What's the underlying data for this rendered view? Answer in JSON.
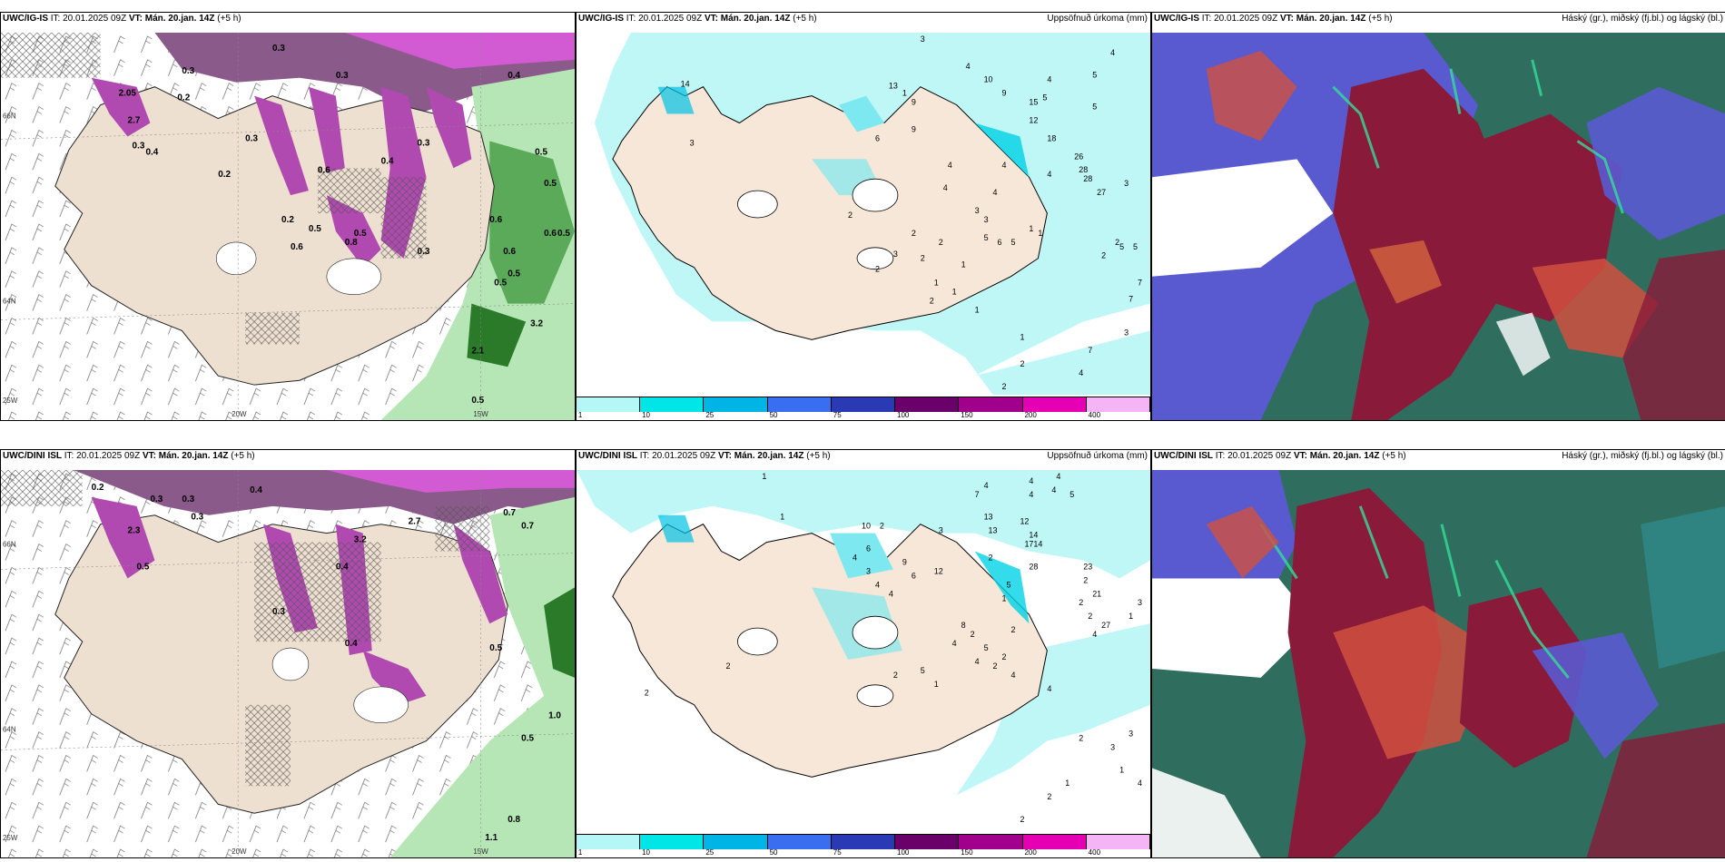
{
  "panels": [
    {
      "model": "UWC/IG-IS",
      "it_label": "IT:",
      "it": "20.01.2025 09Z",
      "vt_label": "VT:",
      "vt": "Mán. 20.jan. 14Z",
      "lead": "(+5 h)",
      "right": ""
    },
    {
      "model": "UWC/IG-IS",
      "it_label": "IT:",
      "it": "20.01.2025 09Z",
      "vt_label": "VT:",
      "vt": "Mán. 20.jan. 14Z",
      "lead": "(+5 h)",
      "right": "Uppsöfnuð úrkoma (mm)"
    },
    {
      "model": "UWC/IG-IS",
      "it_label": "IT:",
      "it": "20.01.2025 09Z",
      "vt_label": "VT:",
      "vt": "Mán. 20.jan. 14Z",
      "lead": "(+5 h)",
      "right": "Háský (gr.), miðský (fj.bl.) og lágský (bl.)"
    },
    {
      "model": "UWC/DINI ISL",
      "it_label": "IT:",
      "it": "20.01.2025 09Z",
      "vt_label": "VT:",
      "vt": "Mán. 20.jan. 14Z",
      "lead": "(+5 h)",
      "right": ""
    },
    {
      "model": "UWC/DINI ISL",
      "it_label": "IT:",
      "it": "20.01.2025 09Z",
      "vt_label": "VT:",
      "vt": "Mán. 20.jan. 14Z",
      "lead": "(+5 h)",
      "right": "Uppsöfnuð úrkoma (mm)"
    },
    {
      "model": "UWC/DINI ISL",
      "it_label": "IT:",
      "it": "20.01.2025 09Z",
      "vt_label": "VT:",
      "vt": "Mán. 20.jan. 14Z",
      "lead": "(+5 h)",
      "right": "Háský (gr.), miðský (fj.bl.) og lágský (bl.)"
    }
  ],
  "axis_labels": {
    "lon_20w": "20W",
    "lon_15w": "15W",
    "lon_25w": "25W",
    "lat_66n": "66N",
    "lat_64n": "64N"
  },
  "colorbar": {
    "labels": [
      "1",
      "10",
      "25",
      "50",
      "75",
      "100",
      "150",
      "200",
      "400"
    ],
    "colors": [
      "#b5f7f7",
      "#00e6e6",
      "#00b4e6",
      "#3a6ef0",
      "#2a3ab4",
      "#6a006a",
      "#a0008c",
      "#e600b4",
      "#f5b4f5"
    ]
  },
  "precip_labels_top": [
    "3",
    "4",
    "4",
    "10",
    "9",
    "5",
    "5",
    "4",
    "15",
    "1",
    "13",
    "9",
    "12",
    "14",
    "3",
    "6",
    "9",
    "18",
    "26",
    "28",
    "3",
    "4",
    "5",
    "5",
    "4",
    "4",
    "28",
    "27",
    "3",
    "4",
    "4",
    "3",
    "2",
    "1",
    "2",
    "2",
    "5",
    "6",
    "5",
    "1",
    "1",
    "2",
    "2",
    "5",
    "7",
    "7",
    "3",
    "1",
    "7",
    "1",
    "2",
    "4",
    "2",
    "2",
    "3",
    "1",
    "2",
    "1",
    "2"
  ],
  "precip_labels_bottom": [
    "1",
    "4",
    "4",
    "4",
    "7",
    "4",
    "4",
    "5",
    "1",
    "10",
    "2",
    "13",
    "12",
    "3",
    "13",
    "14",
    "17",
    "14",
    "4",
    "3",
    "4",
    "2",
    "5",
    "1",
    "6",
    "9",
    "12",
    "2",
    "28",
    "6",
    "4",
    "23",
    "2",
    "21",
    "2",
    "3",
    "1",
    "2",
    "8",
    "2",
    "27",
    "4",
    "4",
    "5",
    "2",
    "4",
    "2",
    "4",
    "4",
    "5",
    "1",
    "2",
    "2",
    "2",
    "3",
    "3",
    "2",
    "1",
    "4",
    "1",
    "2",
    "2"
  ],
  "snow_labels_top": [
    "0.3",
    "0.3",
    "0.2",
    "0.3",
    "2.05",
    "2.7",
    "0.4",
    "0.3",
    "0.6",
    "0.5",
    "0.6",
    "0.4",
    "0.3",
    "0.4",
    "0.5",
    "0.5",
    "0.6",
    "0.5",
    "0.6",
    "0.5",
    "0.3",
    "0.2",
    "0.2",
    "0.5",
    "0.8",
    "0.6",
    "0.3",
    "3.2",
    "2.1",
    "0.5",
    "0.5"
  ],
  "snow_labels_bottom": [
    "0.2",
    "0.3",
    "0.3",
    "0.4",
    "0.3",
    "2.7",
    "3.2",
    "2.3",
    "0.7",
    "0.7",
    "0.5",
    "0.4",
    "0.3",
    "0.5",
    "0.4",
    "1.0",
    "0.5",
    "0.8",
    "1.1"
  ]
}
